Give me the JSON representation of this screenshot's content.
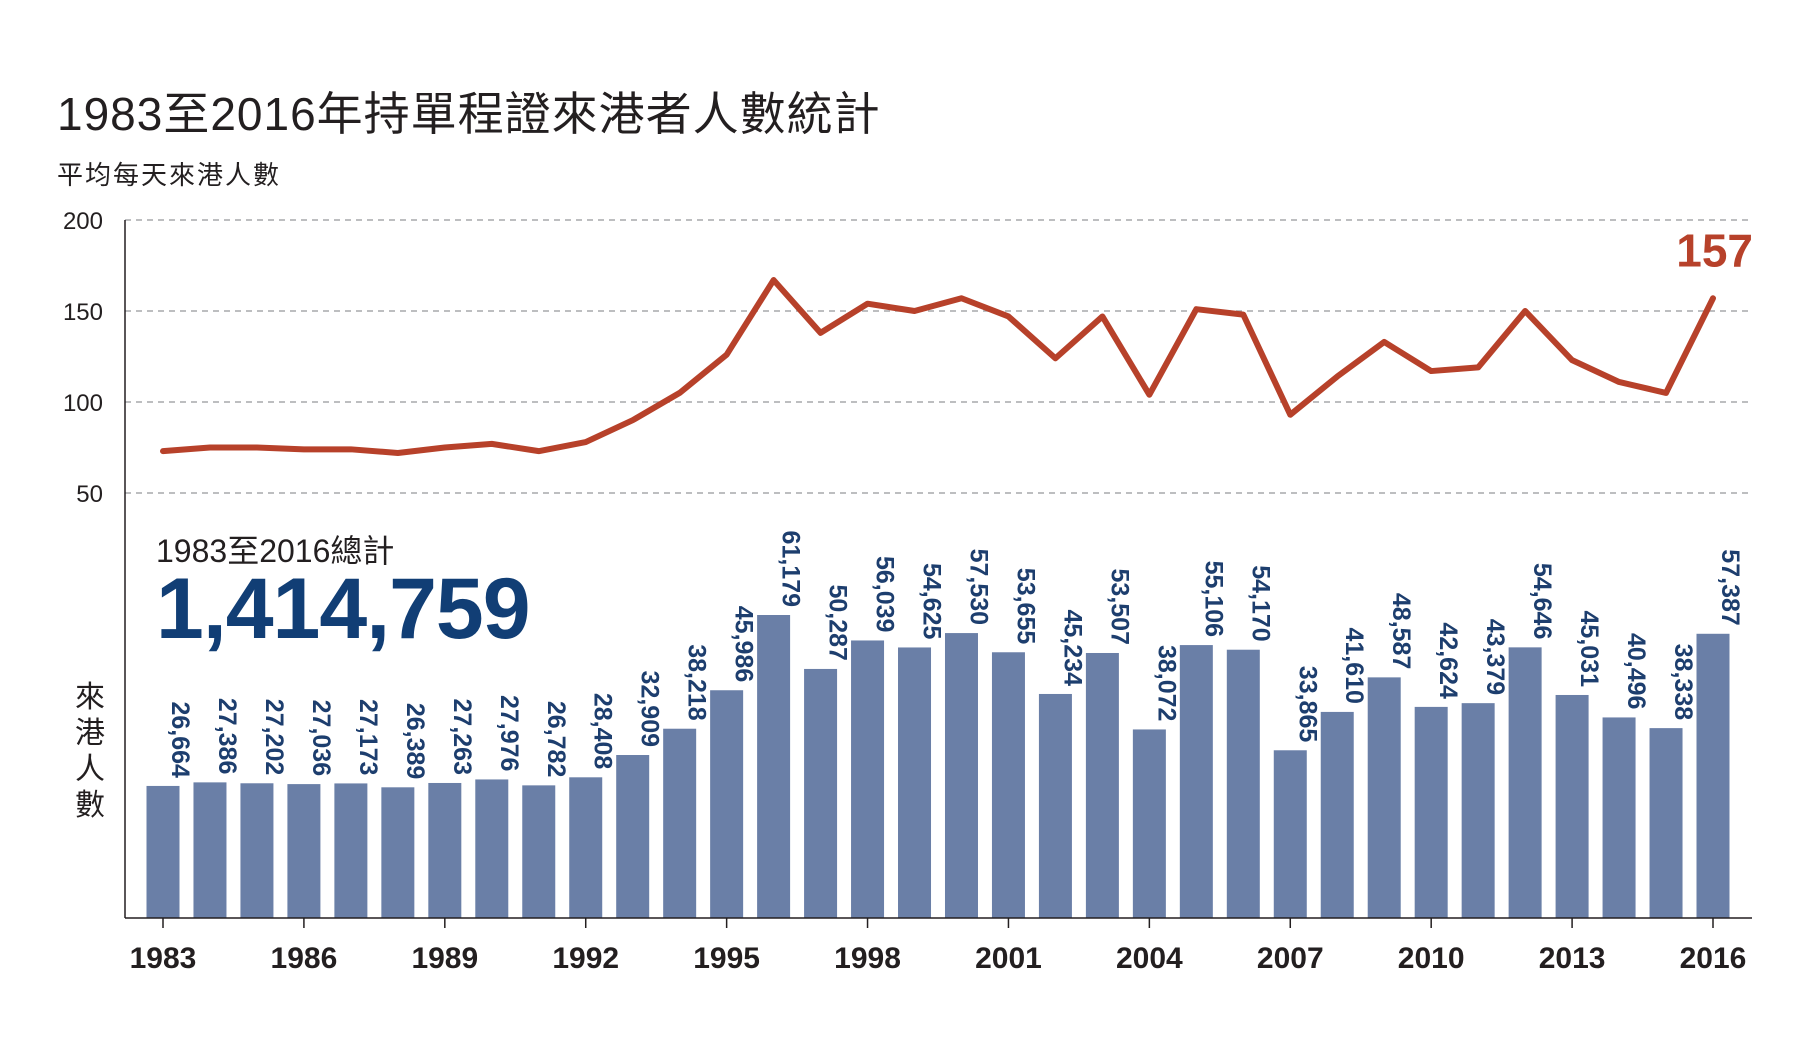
{
  "chart_data": [
    {
      "type": "line",
      "title": "1983至2016年持單程證來港者人數統計",
      "ylabel": "平均每天來港人數",
      "y_ticks": [
        "200",
        "150",
        "100",
        "50"
      ],
      "ylim": [
        50,
        200
      ],
      "grid": true,
      "line_color": "#b7412a",
      "x": [
        1983,
        1984,
        1985,
        1986,
        1987,
        1988,
        1989,
        1990,
        1991,
        1992,
        1993,
        1994,
        1995,
        1996,
        1997,
        1998,
        1999,
        2000,
        2001,
        2002,
        2003,
        2004,
        2005,
        2006,
        2007,
        2008,
        2009,
        2010,
        2011,
        2012,
        2013,
        2014,
        2015,
        2016
      ],
      "values": [
        73,
        75,
        75,
        74,
        74,
        72,
        75,
        77,
        73,
        78,
        90,
        105,
        126,
        167,
        138,
        154,
        150,
        157,
        147,
        124,
        147,
        104,
        151,
        148,
        93,
        114,
        133,
        117,
        119,
        150,
        123,
        111,
        105,
        157
      ],
      "end_label": "157"
    },
    {
      "type": "bar",
      "ylabel": "來港人數",
      "bar_color": "#6a7fa7",
      "label_color": "#1d3e6e",
      "x_tick_labels": [
        "1983",
        "1986",
        "1989",
        "1992",
        "1995",
        "1998",
        "2001",
        "2004",
        "2007",
        "2010",
        "2013",
        "2016"
      ],
      "categories": [
        1983,
        1984,
        1985,
        1986,
        1987,
        1988,
        1989,
        1990,
        1991,
        1992,
        1993,
        1994,
        1995,
        1996,
        1997,
        1998,
        1999,
        2000,
        2001,
        2002,
        2003,
        2004,
        2005,
        2006,
        2007,
        2008,
        2009,
        2010,
        2011,
        2012,
        2013,
        2014,
        2015,
        2016
      ],
      "values": [
        26664,
        27386,
        27202,
        27036,
        27173,
        26389,
        27263,
        27976,
        26782,
        28408,
        32909,
        38218,
        45986,
        61179,
        50287,
        56039,
        54625,
        57530,
        53655,
        45234,
        53507,
        38072,
        55106,
        54170,
        33865,
        41610,
        48587,
        42624,
        43379,
        54646,
        45031,
        40496,
        38338,
        57387
      ],
      "value_labels": [
        "26,664",
        "27,386",
        "27,202",
        "27,036",
        "27,173",
        "26,389",
        "27,263",
        "27,976",
        "26,782",
        "28,408",
        "32,909",
        "38,218",
        "45,986",
        "61,179",
        "50,287",
        "56,039",
        "54,625",
        "57,530",
        "53,655",
        "45,234",
        "53,507",
        "38,072",
        "55,106",
        "54,170",
        "33,865",
        "41,610",
        "48,587",
        "42,624",
        "43,379",
        "54,646",
        "45,031",
        "40,496",
        "38,338",
        "57,387"
      ],
      "ylim": [
        0,
        61179
      ]
    }
  ],
  "total": {
    "label": "1983至2016總計",
    "value": "1,414,759",
    "color": "#113e75"
  }
}
